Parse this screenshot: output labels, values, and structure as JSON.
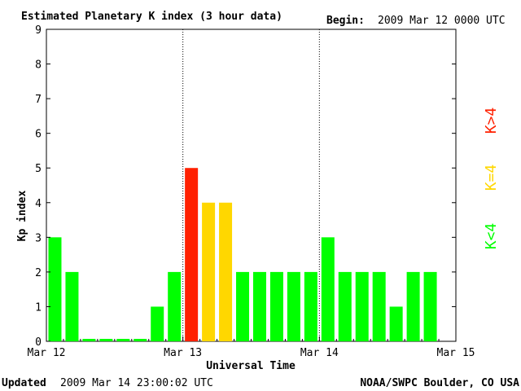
{
  "header": {
    "title": "Estimated Planetary K index (3 hour data)",
    "begin_label": "Begin:",
    "begin_value": "2009 Mar 12 0000 UTC"
  },
  "footer": {
    "updated_label": "Updated",
    "updated_value": "2009 Mar 14 23:00:02 UTC",
    "source": "NOAA/SWPC Boulder, CO USA"
  },
  "legend": {
    "gt4": "K>4",
    "eq4": "K=4",
    "lt4": "K<4"
  },
  "colors": {
    "lt4": "#00ff00",
    "eq4": "#ffd700",
    "gt4": "#ff2000",
    "axis": "#000000",
    "background": "#ffffff"
  },
  "chart_data": {
    "type": "bar",
    "title": "Estimated Planetary K index (3 hour data)",
    "xlabel": "Universal Time",
    "ylabel": "Kp index",
    "ylim": [
      0,
      9
    ],
    "yticks": [
      "0",
      "1",
      "2",
      "3",
      "4",
      "5",
      "6",
      "7",
      "8",
      "9"
    ],
    "x_tick_labels": [
      "Mar 12",
      "Mar 13",
      "Mar 14",
      "Mar 15"
    ],
    "day_dividers": [
      "Mar 13",
      "Mar 14"
    ],
    "grid": false,
    "legend_placement": "right",
    "interval_hours": 3,
    "values": [
      3,
      2,
      0,
      0,
      0,
      0,
      1,
      2,
      5,
      4,
      4,
      2,
      2,
      2,
      2,
      2,
      3,
      2,
      2,
      2,
      1,
      2,
      2
    ]
  }
}
